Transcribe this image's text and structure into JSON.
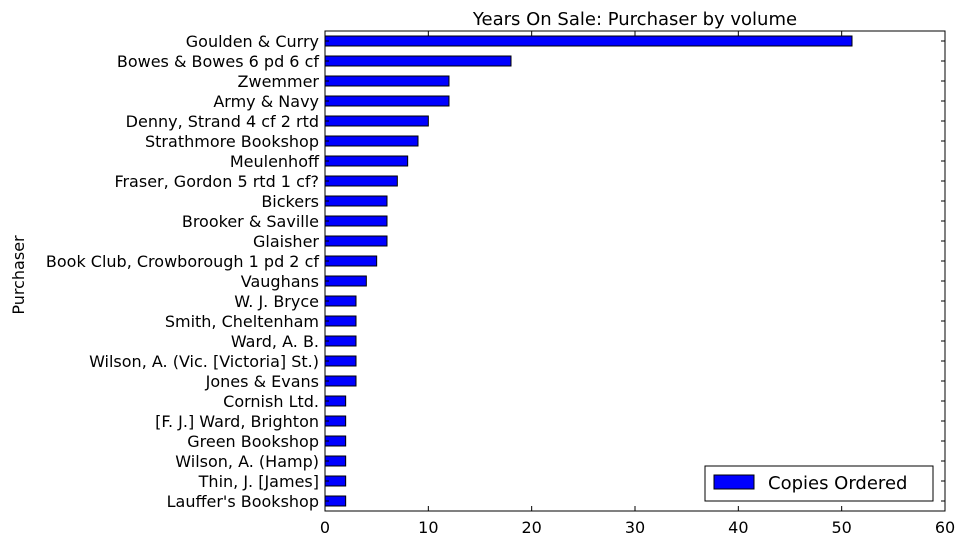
{
  "chart_data": {
    "type": "bar",
    "orientation": "horizontal",
    "title": "Years On Sale: Purchaser by volume",
    "xlabel": "",
    "ylabel": "Purchaser",
    "xlim": [
      0,
      60
    ],
    "xticks": [
      "0",
      "10",
      "20",
      "30",
      "40",
      "50",
      "60"
    ],
    "categories": [
      "Goulden & Curry",
      "Bowes & Bowes 6 pd 6 cf",
      "Zwemmer",
      "Army & Navy",
      "Denny, Strand 4 cf 2 rtd",
      "Strathmore Bookshop",
      "Meulenhoff",
      "Fraser, Gordon 5 rtd 1 cf?",
      "Bickers",
      "Brooker & Saville",
      "Glaisher",
      "Book Club, Crowborough 1 pd 2 cf",
      "Vaughans",
      "W. J. Bryce",
      "Smith, Cheltenham",
      "Ward, A. B.",
      "Wilson, A. (Vic. [Victoria] St.)",
      "Jones & Evans",
      "Cornish Ltd.",
      "[F. J.] Ward, Brighton",
      "Green Bookshop",
      "Wilson, A. (Hamp)",
      "Thin, J. [James]",
      "Lauffer's Bookshop"
    ],
    "series": [
      {
        "name": "Copies Ordered",
        "color": "#0000ff",
        "values": [
          51,
          18,
          12,
          12,
          10,
          9,
          8,
          7,
          6,
          6,
          6,
          5,
          4,
          3,
          3,
          3,
          3,
          3,
          2,
          2,
          2,
          2,
          2,
          2
        ]
      }
    ],
    "legend": {
      "position": "bottom-right"
    },
    "grid": false
  }
}
